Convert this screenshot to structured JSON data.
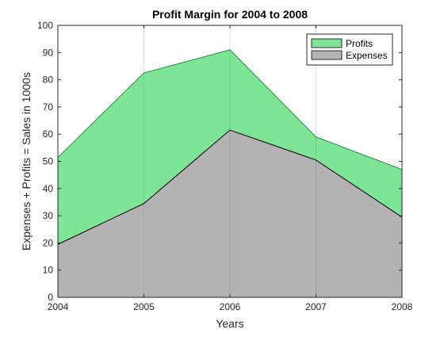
{
  "chart_data": {
    "type": "area",
    "title": "Profit Margin for 2004 to 2008",
    "xlabel": "Years",
    "ylabel": "Expenses + Profits = Sales in 1000s",
    "x": [
      2004,
      2005,
      2006,
      2007,
      2008
    ],
    "xlim": [
      2004,
      2008
    ],
    "ylim": [
      0,
      100
    ],
    "xticks": [
      "2004",
      "2005",
      "2006",
      "2007",
      "2008"
    ],
    "yticks": [
      "0",
      "10",
      "20",
      "30",
      "40",
      "50",
      "60",
      "70",
      "80",
      "90",
      "100"
    ],
    "grid": "vertical",
    "legend_position": "top-right",
    "stacked": true,
    "series": [
      {
        "name": "Profits",
        "values": [
          32,
          48,
          29.5,
          8.5,
          17.5
        ],
        "color": "#7ee596"
      },
      {
        "name": "Expenses",
        "values": [
          19.5,
          34.5,
          61.5,
          50.5,
          29.5
        ],
        "color": "#b3b3b3"
      }
    ]
  }
}
